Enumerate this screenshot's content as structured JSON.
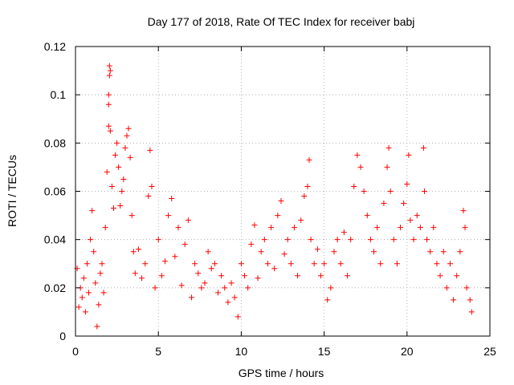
{
  "chart_data": {
    "type": "scatter",
    "title": "Day 177 of 2018, Rate Of TEC Index for receiver babj",
    "xlabel": "GPS time / hours",
    "ylabel": "ROTI / TECUs",
    "xlim": [
      0,
      25
    ],
    "ylim": [
      0,
      0.12
    ],
    "xticks": [
      0,
      5,
      10,
      15,
      20,
      25
    ],
    "yticks": [
      0,
      0.02,
      0.04,
      0.06,
      0.08,
      0.1,
      0.12
    ],
    "xtick_labels": [
      "0",
      "5",
      "10",
      "15",
      "20",
      "25"
    ],
    "ytick_labels": [
      "0",
      "0.02",
      "0.04",
      "0.06",
      "0.08",
      "0.1",
      "0.12"
    ],
    "grid": true,
    "marker": "plus",
    "color": "#ff0000",
    "series": [
      {
        "name": "ROTI",
        "points": [
          [
            0.1,
            0.028
          ],
          [
            0.2,
            0.012
          ],
          [
            0.3,
            0.02
          ],
          [
            0.4,
            0.016
          ],
          [
            0.5,
            0.024
          ],
          [
            0.6,
            0.01
          ],
          [
            0.7,
            0.03
          ],
          [
            0.8,
            0.018
          ],
          [
            0.9,
            0.04
          ],
          [
            1.0,
            0.052
          ],
          [
            1.1,
            0.035
          ],
          [
            1.2,
            0.022
          ],
          [
            1.3,
            0.004
          ],
          [
            1.4,
            0.013
          ],
          [
            1.5,
            0.026
          ],
          [
            1.6,
            0.03
          ],
          [
            1.7,
            0.018
          ],
          [
            1.8,
            0.045
          ],
          [
            1.9,
            0.068
          ],
          [
            2.0,
            0.087
          ],
          [
            2.0,
            0.096
          ],
          [
            2.0,
            0.1
          ],
          [
            2.05,
            0.108
          ],
          [
            2.05,
            0.112
          ],
          [
            2.1,
            0.11
          ],
          [
            2.1,
            0.085
          ],
          [
            2.2,
            0.062
          ],
          [
            2.3,
            0.053
          ],
          [
            2.4,
            0.075
          ],
          [
            2.5,
            0.08
          ],
          [
            2.6,
            0.07
          ],
          [
            2.7,
            0.054
          ],
          [
            2.8,
            0.06
          ],
          [
            2.9,
            0.065
          ],
          [
            3.0,
            0.078
          ],
          [
            3.1,
            0.083
          ],
          [
            3.2,
            0.086
          ],
          [
            3.3,
            0.074
          ],
          [
            3.4,
            0.05
          ],
          [
            3.5,
            0.035
          ],
          [
            3.6,
            0.026
          ],
          [
            3.8,
            0.036
          ],
          [
            4.0,
            0.024
          ],
          [
            4.2,
            0.03
          ],
          [
            4.4,
            0.058
          ],
          [
            4.5,
            0.077
          ],
          [
            4.6,
            0.062
          ],
          [
            4.8,
            0.02
          ],
          [
            5.0,
            0.04
          ],
          [
            5.2,
            0.025
          ],
          [
            5.4,
            0.031
          ],
          [
            5.6,
            0.05
          ],
          [
            5.8,
            0.057
          ],
          [
            6.0,
            0.033
          ],
          [
            6.2,
            0.045
          ],
          [
            6.4,
            0.021
          ],
          [
            6.6,
            0.038
          ],
          [
            6.8,
            0.048
          ],
          [
            7.0,
            0.016
          ],
          [
            7.2,
            0.03
          ],
          [
            7.4,
            0.026
          ],
          [
            7.6,
            0.02
          ],
          [
            7.8,
            0.022
          ],
          [
            8.0,
            0.035
          ],
          [
            8.2,
            0.028
          ],
          [
            8.4,
            0.03
          ],
          [
            8.6,
            0.018
          ],
          [
            8.8,
            0.025
          ],
          [
            9.0,
            0.02
          ],
          [
            9.2,
            0.014
          ],
          [
            9.4,
            0.022
          ],
          [
            9.6,
            0.016
          ],
          [
            9.8,
            0.008
          ],
          [
            10.0,
            0.03
          ],
          [
            10.2,
            0.025
          ],
          [
            10.4,
            0.02
          ],
          [
            10.6,
            0.038
          ],
          [
            10.8,
            0.046
          ],
          [
            11.0,
            0.024
          ],
          [
            11.2,
            0.035
          ],
          [
            11.4,
            0.04
          ],
          [
            11.6,
            0.03
          ],
          [
            11.8,
            0.045
          ],
          [
            12.0,
            0.028
          ],
          [
            12.2,
            0.05
          ],
          [
            12.4,
            0.056
          ],
          [
            12.6,
            0.034
          ],
          [
            12.8,
            0.04
          ],
          [
            13.0,
            0.03
          ],
          [
            13.2,
            0.045
          ],
          [
            13.4,
            0.025
          ],
          [
            13.6,
            0.048
          ],
          [
            13.8,
            0.058
          ],
          [
            14.0,
            0.062
          ],
          [
            14.1,
            0.073
          ],
          [
            14.2,
            0.04
          ],
          [
            14.4,
            0.03
          ],
          [
            14.6,
            0.036
          ],
          [
            14.8,
            0.025
          ],
          [
            15.0,
            0.03
          ],
          [
            15.2,
            0.015
          ],
          [
            15.4,
            0.02
          ],
          [
            15.6,
            0.035
          ],
          [
            15.8,
            0.04
          ],
          [
            16.0,
            0.03
          ],
          [
            16.2,
            0.043
          ],
          [
            16.4,
            0.025
          ],
          [
            16.6,
            0.04
          ],
          [
            16.8,
            0.062
          ],
          [
            17.0,
            0.075
          ],
          [
            17.2,
            0.07
          ],
          [
            17.4,
            0.06
          ],
          [
            17.6,
            0.05
          ],
          [
            17.8,
            0.04
          ],
          [
            18.0,
            0.035
          ],
          [
            18.2,
            0.045
          ],
          [
            18.4,
            0.03
          ],
          [
            18.6,
            0.055
          ],
          [
            18.8,
            0.07
          ],
          [
            18.9,
            0.078
          ],
          [
            19.0,
            0.06
          ],
          [
            19.2,
            0.04
          ],
          [
            19.4,
            0.03
          ],
          [
            19.6,
            0.045
          ],
          [
            19.8,
            0.055
          ],
          [
            20.0,
            0.063
          ],
          [
            20.1,
            0.075
          ],
          [
            20.2,
            0.048
          ],
          [
            20.4,
            0.04
          ],
          [
            20.6,
            0.05
          ],
          [
            20.8,
            0.045
          ],
          [
            21.0,
            0.078
          ],
          [
            21.05,
            0.06
          ],
          [
            21.2,
            0.04
          ],
          [
            21.4,
            0.035
          ],
          [
            21.6,
            0.045
          ],
          [
            21.8,
            0.03
          ],
          [
            22.0,
            0.025
          ],
          [
            22.2,
            0.035
          ],
          [
            22.4,
            0.02
          ],
          [
            22.6,
            0.03
          ],
          [
            22.8,
            0.015
          ],
          [
            23.0,
            0.025
          ],
          [
            23.2,
            0.035
          ],
          [
            23.4,
            0.052
          ],
          [
            23.5,
            0.045
          ],
          [
            23.6,
            0.02
          ],
          [
            23.8,
            0.015
          ],
          [
            23.9,
            0.01
          ]
        ]
      }
    ]
  }
}
